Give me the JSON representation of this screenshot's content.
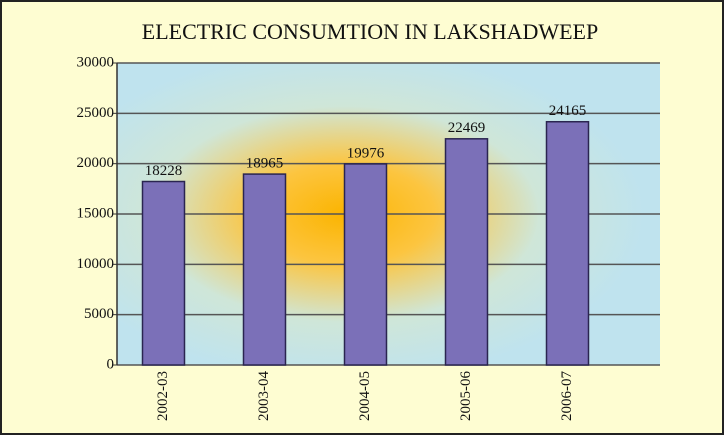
{
  "chart_data": {
    "type": "bar",
    "title": "ELECTRIC CONSUMTION IN LAKSHADWEEP",
    "categories": [
      "2002-03",
      "2003-04",
      "2004-05",
      "2005-06",
      "2006-07"
    ],
    "values": [
      18228,
      18965,
      19976,
      22469,
      24165
    ],
    "color": "#7b70b8",
    "ylim": [
      0,
      30000
    ],
    "yticks": [
      0,
      5000,
      10000,
      15000,
      20000,
      25000,
      30000
    ],
    "grid": true
  }
}
